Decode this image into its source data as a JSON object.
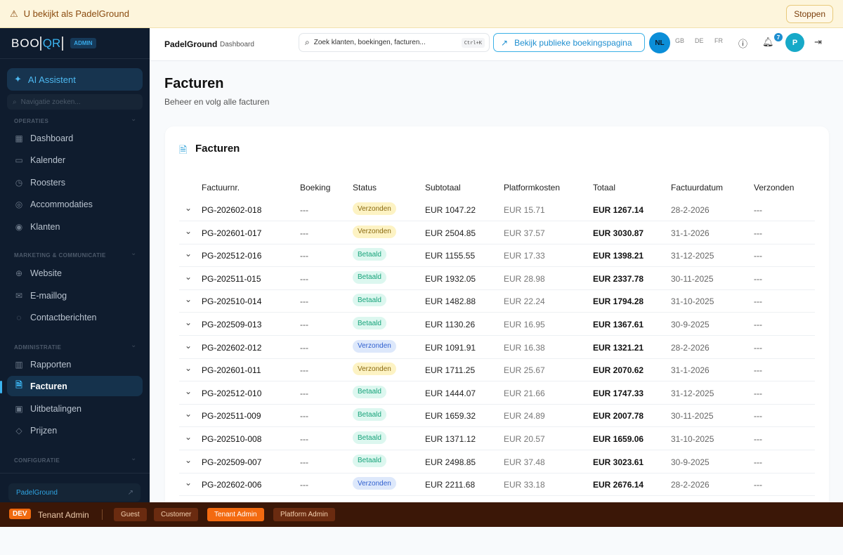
{
  "banner": {
    "text": "U bekijkt als PadelGround",
    "stop_label": "Stoppen"
  },
  "sidebar": {
    "logo": "BOOQR",
    "badge": "ADMIN",
    "ai_label": "AI Assistent",
    "search_placeholder": "Navigatie zoeken...",
    "sections": [
      {
        "title": "OPERATIES",
        "items": [
          {
            "label": "Dashboard",
            "icon": "grid-icon"
          },
          {
            "label": "Kalender",
            "icon": "calendar-icon"
          },
          {
            "label": "Roosters",
            "icon": "calendar-clock-icon"
          },
          {
            "label": "Accommodaties",
            "icon": "map-pin-icon"
          },
          {
            "label": "Klanten",
            "icon": "user-circle-icon"
          }
        ]
      },
      {
        "title": "MARKETING & COMMUNICATIE",
        "items": [
          {
            "label": "Website",
            "icon": "globe-icon"
          },
          {
            "label": "E-maillog",
            "icon": "mail-icon"
          },
          {
            "label": "Contactberichten",
            "icon": "message-icon"
          }
        ]
      },
      {
        "title": "ADMINISTRATIE",
        "items": [
          {
            "label": "Rapporten",
            "icon": "bar-chart-icon"
          },
          {
            "label": "Facturen",
            "icon": "file-icon",
            "active": true
          },
          {
            "label": "Uitbetalingen",
            "icon": "wallet-icon"
          },
          {
            "label": "Prijzen",
            "icon": "tag-icon"
          }
        ]
      },
      {
        "title": "CONFIGURATIE",
        "items": []
      }
    ],
    "tenant": "PadelGround"
  },
  "header": {
    "title": "PadelGround",
    "subtitle": "Dashboard",
    "search_placeholder": "Zoek klanten, boekingen, facturen...",
    "shortcut": "Ctrl+K",
    "public_button": "Bekijk publieke boekingspagina",
    "languages": [
      "NL",
      "GB",
      "DE",
      "FR"
    ],
    "active_language": "NL",
    "notifications": "7",
    "avatar": "P"
  },
  "page": {
    "title": "Facturen",
    "subtitle": "Beheer en volg alle facturen"
  },
  "card": {
    "title": "Facturen",
    "columns": [
      "Factuurnr.",
      "Boeking",
      "Status",
      "Subtotaal",
      "Platformkosten",
      "Totaal",
      "Factuurdatum",
      "Verzonden"
    ],
    "rows": [
      [
        "PG-202602-018",
        "---",
        "Verzonden",
        "EUR 1047.22",
        "EUR 15.71",
        "EUR 1267.14",
        "28-2-2026",
        "---",
        "yellow"
      ],
      [
        "PG-202601-017",
        "---",
        "Verzonden",
        "EUR 2504.85",
        "EUR 37.57",
        "EUR 3030.87",
        "31-1-2026",
        "---",
        "yellow"
      ],
      [
        "PG-202512-016",
        "---",
        "Betaald",
        "EUR 1155.55",
        "EUR 17.33",
        "EUR 1398.21",
        "31-12-2025",
        "---",
        "green"
      ],
      [
        "PG-202511-015",
        "---",
        "Betaald",
        "EUR 1932.05",
        "EUR 28.98",
        "EUR 2337.78",
        "30-11-2025",
        "---",
        "green"
      ],
      [
        "PG-202510-014",
        "---",
        "Betaald",
        "EUR 1482.88",
        "EUR 22.24",
        "EUR 1794.28",
        "31-10-2025",
        "---",
        "green"
      ],
      [
        "PG-202509-013",
        "---",
        "Betaald",
        "EUR 1130.26",
        "EUR 16.95",
        "EUR 1367.61",
        "30-9-2025",
        "---",
        "green"
      ],
      [
        "PG-202602-012",
        "---",
        "Verzonden",
        "EUR 1091.91",
        "EUR 16.38",
        "EUR 1321.21",
        "28-2-2026",
        "---",
        "blue"
      ],
      [
        "PG-202601-011",
        "---",
        "Verzonden",
        "EUR 1711.25",
        "EUR 25.67",
        "EUR 2070.62",
        "31-1-2026",
        "---",
        "yellow"
      ],
      [
        "PG-202512-010",
        "---",
        "Betaald",
        "EUR 1444.07",
        "EUR 21.66",
        "EUR 1747.33",
        "31-12-2025",
        "---",
        "green"
      ],
      [
        "PG-202511-009",
        "---",
        "Betaald",
        "EUR 1659.32",
        "EUR 24.89",
        "EUR 2007.78",
        "30-11-2025",
        "---",
        "green"
      ],
      [
        "PG-202510-008",
        "---",
        "Betaald",
        "EUR 1371.12",
        "EUR 20.57",
        "EUR 1659.06",
        "31-10-2025",
        "---",
        "green"
      ],
      [
        "PG-202509-007",
        "---",
        "Betaald",
        "EUR 2498.85",
        "EUR 37.48",
        "EUR 3023.61",
        "30-9-2025",
        "---",
        "green"
      ],
      [
        "PG-202602-006",
        "---",
        "Verzonden",
        "EUR 2211.68",
        "EUR 33.18",
        "EUR 2676.14",
        "28-2-2026",
        "---",
        "blue"
      ]
    ]
  },
  "status_colors": {
    "yellow": {
      "bg": "#fdf3c4",
      "fg": "#8a6a10"
    },
    "green": {
      "bg": "#dcf7ef",
      "fg": "#17a37a"
    },
    "blue": {
      "bg": "#dde8fb",
      "fg": "#2f5fcf"
    }
  },
  "devbar": {
    "tag": "DEV",
    "role": "Tenant Admin",
    "roles": [
      "Guest",
      "Customer",
      "Tenant Admin",
      "Platform Admin"
    ],
    "active_role": "Tenant Admin"
  }
}
